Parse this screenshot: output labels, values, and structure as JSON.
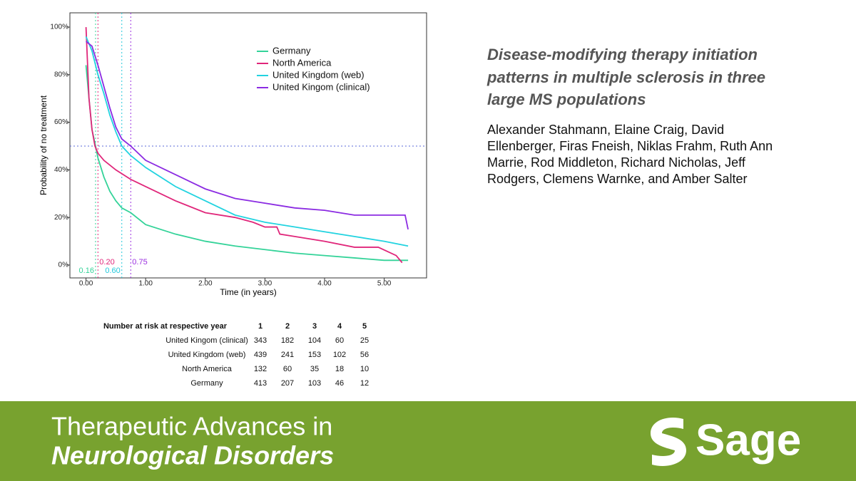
{
  "chart_data": {
    "type": "line",
    "xlabel": "Time (in years)",
    "ylabel": "Probability of no treatment",
    "xlim": [
      -0.27,
      5.71
    ],
    "ylim": [
      -5.4,
      106
    ],
    "xticks": [
      {
        "value": 0,
        "label": "0.00"
      },
      {
        "value": 1,
        "label": "1.00"
      },
      {
        "value": 2,
        "label": "2.00"
      },
      {
        "value": 3,
        "label": "3.00"
      },
      {
        "value": 4,
        "label": "4.00"
      },
      {
        "value": 5,
        "label": "5.00"
      }
    ],
    "yticks": [
      {
        "value": 0,
        "label": "0%"
      },
      {
        "value": 20,
        "label": "20%"
      },
      {
        "value": 40,
        "label": "40%"
      },
      {
        "value": 60,
        "label": "60%"
      },
      {
        "value": 80,
        "label": "80%"
      },
      {
        "value": 100,
        "label": "100%"
      }
    ],
    "reference_line": 50,
    "reference_color": "#5a67d8",
    "medians": [
      {
        "value": 0.16,
        "label": "0.16",
        "color": "#34d399"
      },
      {
        "value": 0.2,
        "label": "0.20",
        "color": "#e0267a"
      },
      {
        "value": 0.6,
        "label": "0.60",
        "color": "#22c8dc"
      },
      {
        "value": 0.75,
        "label": "0.75",
        "color": "#9b30e0"
      }
    ],
    "series": [
      {
        "name": "Germany",
        "color": "#34d399",
        "x": [
          0,
          0.05,
          0.1,
          0.16,
          0.2,
          0.3,
          0.4,
          0.5,
          0.6,
          0.75,
          1.0,
          1.5,
          2.0,
          2.5,
          3.0,
          3.5,
          4.0,
          4.5,
          5.0,
          5.4
        ],
        "values": [
          84,
          70,
          57,
          50,
          45,
          37,
          31,
          27,
          24,
          22,
          17,
          13,
          10,
          8,
          6.5,
          5,
          4,
          3,
          2,
          2
        ]
      },
      {
        "name": "North America",
        "color": "#e0267a",
        "x": [
          0,
          0.02,
          0.05,
          0.1,
          0.15,
          0.2,
          0.3,
          0.5,
          0.75,
          1.0,
          1.5,
          2.0,
          2.5,
          2.8,
          3.0,
          3.2,
          3.25,
          3.5,
          4.0,
          4.5,
          4.9,
          5.2,
          5.3
        ],
        "values": [
          100,
          88,
          70,
          57,
          50,
          47,
          44,
          40,
          36,
          33,
          27,
          22,
          20,
          18,
          16,
          16,
          13,
          12,
          10,
          7.5,
          7.5,
          4,
          1
        ]
      },
      {
        "name": "United Kingdom (web)",
        "color": "#22d3e0",
        "x": [
          0,
          0.05,
          0.1,
          0.2,
          0.3,
          0.4,
          0.5,
          0.6,
          0.75,
          1.0,
          1.5,
          2.0,
          2.5,
          3.0,
          3.5,
          4.0,
          4.5,
          5.0,
          5.4
        ],
        "values": [
          96,
          93,
          90,
          80,
          72,
          63,
          56,
          50,
          46,
          41,
          33,
          27,
          21,
          18,
          16,
          14,
          12,
          10,
          8
        ]
      },
      {
        "name": "United Kingom (clinical)",
        "color": "#8b2be2",
        "x": [
          0,
          0.1,
          0.2,
          0.3,
          0.4,
          0.5,
          0.6,
          0.75,
          1.0,
          1.5,
          2.0,
          2.5,
          3.0,
          3.5,
          4.0,
          4.5,
          5.0,
          5.35,
          5.4
        ],
        "values": [
          94,
          92,
          84,
          75,
          66,
          58,
          53,
          50,
          44,
          38,
          32,
          28,
          26,
          24,
          23,
          21,
          21,
          21,
          15
        ]
      }
    ]
  },
  "risk_table": {
    "header": [
      "Number at risk at respective year",
      "1",
      "2",
      "3",
      "4",
      "5"
    ],
    "rows": [
      [
        "United Kingom (clinical)",
        "343",
        "182",
        "104",
        "60",
        "25"
      ],
      [
        "United Kingdom (web)",
        "439",
        "241",
        "153",
        "102",
        "56"
      ],
      [
        "North America",
        "132",
        "60",
        "35",
        "18",
        "10"
      ],
      [
        "Germany",
        "413",
        "207",
        "103",
        "46",
        "12"
      ]
    ]
  },
  "article": {
    "title": [
      "Disease-modifying therapy initiation",
      "patterns in multiple sclerosis in three",
      "large MS populations"
    ],
    "authors": [
      "Alexander Stahmann, Elaine Craig, David",
      "Ellenberger, Firas Fneish, Niklas Frahm, Ruth Ann",
      "Marrie, Rod Middleton, Richard Nicholas, Jeff",
      "Rodgers, Clemens Warnke, and Amber Salter"
    ]
  },
  "banner": {
    "journal": [
      "Therapeutic Advances in",
      "Neurological Disorders"
    ],
    "brand": "Sage"
  }
}
